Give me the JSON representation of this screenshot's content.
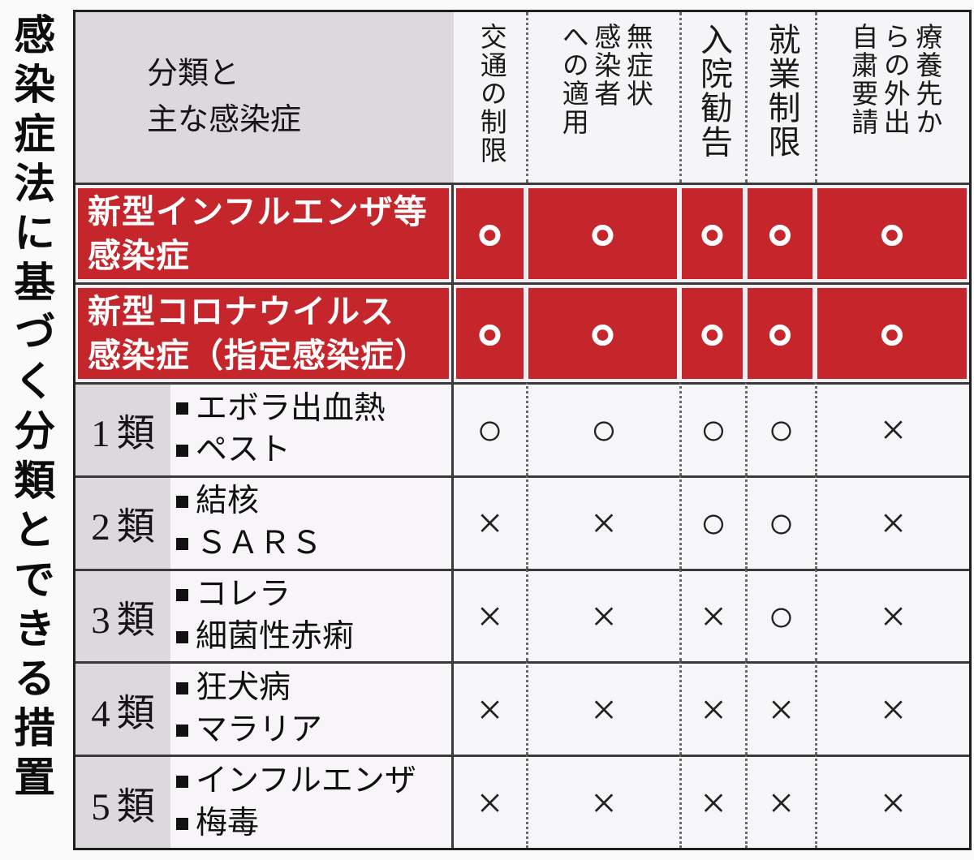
{
  "side_title": "感染症法に基づく分類とできる措置",
  "table": {
    "corner_header": "分類と\n主な感染症",
    "column_headers": [
      "交通の制限",
      "無症状\n感染者\nへの適用",
      "入院勧告",
      "就業制限",
      "療養先か\nらの外出\n自粛要請"
    ]
  },
  "rows": [
    {
      "type": "red",
      "label": "新型インフルエンザ等\n感染症",
      "marks": [
        "○",
        "○",
        "○",
        "○",
        "○"
      ]
    },
    {
      "type": "red",
      "label": "新型コロナウイルス\n感染症（指定感染症）",
      "marks": [
        "○",
        "○",
        "○",
        "○",
        "○"
      ]
    },
    {
      "type": "class",
      "class_label": "1類",
      "diseases": [
        "エボラ出血熱",
        "ペスト"
      ],
      "marks": [
        "○",
        "○",
        "○",
        "○",
        "×"
      ]
    },
    {
      "type": "class",
      "class_label": "2類",
      "diseases": [
        "結核",
        "ＳＡＲＳ"
      ],
      "marks": [
        "×",
        "×",
        "○",
        "○",
        "×"
      ]
    },
    {
      "type": "class",
      "class_label": "3類",
      "diseases": [
        "コレラ",
        "細菌性赤痢"
      ],
      "marks": [
        "×",
        "×",
        "×",
        "○",
        "×"
      ]
    },
    {
      "type": "class",
      "class_label": "4類",
      "diseases": [
        "狂犬病",
        "マラリア"
      ],
      "marks": [
        "×",
        "×",
        "×",
        "×",
        "×"
      ]
    },
    {
      "type": "class",
      "class_label": "5類",
      "diseases": [
        "インフルエンザ",
        "梅毒"
      ],
      "marks": [
        "×",
        "×",
        "×",
        "×",
        "×"
      ]
    }
  ],
  "colors": {
    "red": "#c5262b",
    "lavender": "#ddd8de",
    "headbg": "#f5f4f6",
    "bodybg": "#f6f5f7",
    "line": "#3a3a3a",
    "page": "#fbfafb",
    "red_text": "#ffffff"
  },
  "chart_data": {
    "type": "table",
    "title": "感染症法に基づく分類とできる措置",
    "row_header": "分類と主な感染症",
    "columns": [
      "交通の制限",
      "無症状感染者への適用",
      "入院勧告",
      "就業制限",
      "療養先からの外出自粛要請"
    ],
    "rows": [
      {
        "category": "新型インフルエンザ等感染症",
        "examples": [],
        "values": [
          "○",
          "○",
          "○",
          "○",
          "○"
        ],
        "highlight": true
      },
      {
        "category": "新型コロナウイルス感染症（指定感染症）",
        "examples": [],
        "values": [
          "○",
          "○",
          "○",
          "○",
          "○"
        ],
        "highlight": true
      },
      {
        "category": "1類",
        "examples": [
          "エボラ出血熱",
          "ペスト"
        ],
        "values": [
          "○",
          "○",
          "○",
          "○",
          "×"
        ],
        "highlight": false
      },
      {
        "category": "2類",
        "examples": [
          "結核",
          "ＳＡＲＳ"
        ],
        "values": [
          "×",
          "×",
          "○",
          "○",
          "×"
        ],
        "highlight": false
      },
      {
        "category": "3類",
        "examples": [
          "コレラ",
          "細菌性赤痢"
        ],
        "values": [
          "×",
          "×",
          "×",
          "○",
          "×"
        ],
        "highlight": false
      },
      {
        "category": "4類",
        "examples": [
          "狂犬病",
          "マラリア"
        ],
        "values": [
          "×",
          "×",
          "×",
          "×",
          "×"
        ],
        "highlight": false
      },
      {
        "category": "5類",
        "examples": [
          "インフルエンザ",
          "梅毒"
        ],
        "values": [
          "×",
          "×",
          "×",
          "×",
          "×"
        ],
        "highlight": false
      }
    ],
    "legend_position": "none",
    "grid": true
  }
}
